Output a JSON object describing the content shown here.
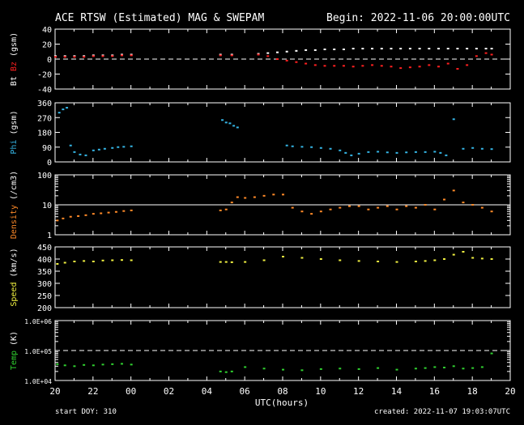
{
  "header": {
    "title": "ACE RTSW (Estimated) MAG & SWEPAM",
    "begin": "Begin: 2022-11-06 20:00:00UTC"
  },
  "footer": {
    "start_doy": "start DOY: 310",
    "created": "created: 2022-11-07 19:03:07UTC"
  },
  "x_axis": {
    "label": "UTC(hours)",
    "ticks": [
      "20",
      "22",
      "00",
      "02",
      "04",
      "06",
      "08",
      "10",
      "12",
      "14",
      "16",
      "18",
      "20"
    ]
  },
  "colors": {
    "bt": "#ffffff",
    "bz": "#ff2020",
    "phi": "#35b5e5",
    "density": "#ff8a28",
    "speed": "#f0f040",
    "temp": "#30d030",
    "frame": "#ffffff",
    "background": "#000000"
  },
  "chart_data": [
    {
      "type": "scatter",
      "panel": "mag",
      "ylabel_parts": [
        "Bt",
        "Bz",
        "(gsm)"
      ],
      "ylim": [
        -40,
        40
      ],
      "yticks": [
        "40",
        "20",
        "0",
        "-20",
        "-40"
      ],
      "reference_line": 0,
      "series": [
        {
          "name": "Bt",
          "x": [
            0,
            0.5,
            1,
            1.5,
            2,
            2.5,
            3,
            3.5,
            4,
            8.7,
            9.3,
            10.7,
            11.2,
            11.7,
            12.2,
            12.7,
            13.2,
            13.7,
            14.2,
            14.7,
            15.2,
            15.7,
            16.2,
            16.7,
            17.2,
            17.7,
            18.2,
            18.7,
            19.2,
            19.7,
            20.2,
            20.7,
            21.2,
            21.7,
            22.2,
            22.7,
            23.0
          ],
          "y": [
            4,
            4,
            4,
            4,
            5,
            5,
            5,
            6,
            6,
            6,
            6,
            7,
            8,
            9,
            10,
            11,
            12,
            12,
            13,
            13,
            13,
            14,
            14,
            14,
            14,
            14,
            14,
            14,
            14,
            14,
            14,
            14,
            14,
            14,
            14,
            14,
            14
          ]
        },
        {
          "name": "Bz",
          "x": [
            0,
            0.5,
            1,
            1.5,
            2,
            2.5,
            3,
            3.5,
            4,
            8.7,
            9.3,
            10.7,
            11.2,
            11.7,
            12.2,
            12.7,
            13.2,
            13.7,
            14.2,
            14.7,
            15.2,
            15.7,
            16.2,
            16.7,
            17.2,
            17.7,
            18.2,
            18.7,
            19.2,
            19.7,
            20.2,
            20.7,
            21.2,
            21.7,
            22.2,
            22.7,
            23.0
          ],
          "y": [
            3,
            3,
            3,
            3,
            4,
            4,
            4,
            5,
            5,
            5,
            5,
            6,
            4,
            0,
            -2,
            -4,
            -6,
            -8,
            -9,
            -9,
            -9,
            -10,
            -9,
            -8,
            -9,
            -10,
            -12,
            -11,
            -10,
            -8,
            -10,
            -6,
            -13,
            -8,
            4,
            8,
            6
          ]
        }
      ]
    },
    {
      "type": "scatter",
      "panel": "phi",
      "ylabel": "Phi (gsm)",
      "ylim": [
        0,
        360
      ],
      "yticks": [
        "360",
        "270",
        "180",
        "90",
        "0"
      ],
      "series": [
        {
          "name": "Phi",
          "x": [
            0.2,
            0.4,
            0.6,
            0.8,
            1.0,
            1.3,
            1.6,
            2.0,
            2.3,
            2.6,
            3.0,
            3.3,
            3.6,
            4.0,
            8.8,
            9.0,
            9.2,
            9.4,
            9.6,
            12.2,
            12.5,
            13.0,
            13.5,
            14.0,
            14.5,
            15.0,
            15.3,
            15.6,
            16.0,
            16.5,
            17.0,
            17.5,
            18.0,
            18.5,
            19.0,
            19.5,
            20.0,
            20.3,
            20.6,
            21.0,
            21.5,
            22.0,
            22.5,
            23.0
          ],
          "y": [
            300,
            320,
            330,
            100,
            60,
            45,
            40,
            70,
            75,
            80,
            85,
            90,
            92,
            95,
            255,
            240,
            235,
            220,
            210,
            100,
            95,
            92,
            90,
            85,
            80,
            70,
            55,
            40,
            50,
            60,
            62,
            58,
            55,
            58,
            60,
            60,
            62,
            55,
            40,
            260,
            80,
            85,
            80,
            78
          ]
        }
      ]
    },
    {
      "type": "scatter",
      "panel": "density",
      "ylabel": "Density (/cm3)",
      "yscale": "log",
      "ylim": [
        1,
        100
      ],
      "yticks": [
        "100",
        "10",
        "1"
      ],
      "reference_line": 10,
      "series": [
        {
          "name": "Density",
          "x": [
            0.1,
            0.4,
            0.8,
            1.2,
            1.6,
            2.0,
            2.4,
            2.8,
            3.2,
            3.6,
            4.0,
            8.7,
            9.0,
            9.3,
            9.6,
            10.0,
            10.5,
            11.0,
            11.5,
            12.0,
            12.5,
            13.0,
            13.5,
            14.0,
            14.5,
            15.0,
            15.5,
            16.0,
            16.5,
            17.0,
            17.5,
            18.0,
            18.5,
            19.0,
            19.5,
            20.0,
            20.5,
            21.0,
            21.5,
            22.0,
            22.5,
            23.0
          ],
          "y": [
            3,
            3.5,
            4,
            4.2,
            4.5,
            5,
            5.2,
            5.5,
            5.8,
            6.2,
            6.5,
            6.5,
            7,
            12,
            18,
            17,
            18,
            20,
            22,
            22,
            8,
            6,
            5,
            6,
            7,
            8,
            9,
            9,
            7,
            8,
            9,
            7,
            9,
            8,
            10,
            7,
            15,
            30,
            12,
            10,
            8,
            6
          ]
        }
      ]
    },
    {
      "type": "scatter",
      "panel": "speed",
      "ylabel": "Speed (km/s)",
      "ylim": [
        200,
        450
      ],
      "yticks": [
        "450",
        "400",
        "350",
        "300",
        "250",
        "200"
      ],
      "series": [
        {
          "name": "Speed",
          "x": [
            0.1,
            0.5,
            1.0,
            1.5,
            2.0,
            2.5,
            3.0,
            3.5,
            4.0,
            8.7,
            9.0,
            9.3,
            10.0,
            11.0,
            12.0,
            13.0,
            14.0,
            15.0,
            16.0,
            17.0,
            18.0,
            19.0,
            19.5,
            20.0,
            20.5,
            21.0,
            21.5,
            22.0,
            22.5,
            23.0
          ],
          "y": [
            380,
            385,
            390,
            392,
            390,
            394,
            395,
            396,
            395,
            388,
            388,
            387,
            388,
            395,
            410,
            405,
            400,
            395,
            392,
            390,
            388,
            390,
            392,
            395,
            400,
            418,
            430,
            405,
            402,
            400
          ]
        }
      ]
    },
    {
      "type": "scatter",
      "panel": "temp",
      "ylabel": "Temp (K)",
      "yscale": "log",
      "ylim": [
        10000,
        1000000
      ],
      "yticks": [
        "1.0E+06",
        "1.0E+05",
        "1.0E+04"
      ],
      "reference_line": 100000,
      "series": [
        {
          "name": "Temp",
          "x": [
            0.1,
            0.5,
            1.0,
            1.5,
            2.0,
            2.5,
            3.0,
            3.5,
            4.0,
            8.7,
            9.0,
            9.3,
            10.0,
            11.0,
            12.0,
            13.0,
            14.0,
            15.0,
            16.0,
            17.0,
            18.0,
            19.0,
            19.5,
            20.0,
            20.5,
            21.0,
            21.5,
            22.0,
            22.5,
            23.0
          ],
          "y": [
            35000,
            32000,
            30000,
            33000,
            32000,
            34000,
            35000,
            36000,
            34000,
            20000,
            19000,
            20000,
            28000,
            25000,
            23000,
            22000,
            24000,
            25000,
            24000,
            26000,
            23000,
            25000,
            26000,
            28000,
            27000,
            30000,
            25000,
            26000,
            28000,
            80000
          ]
        }
      ]
    }
  ]
}
